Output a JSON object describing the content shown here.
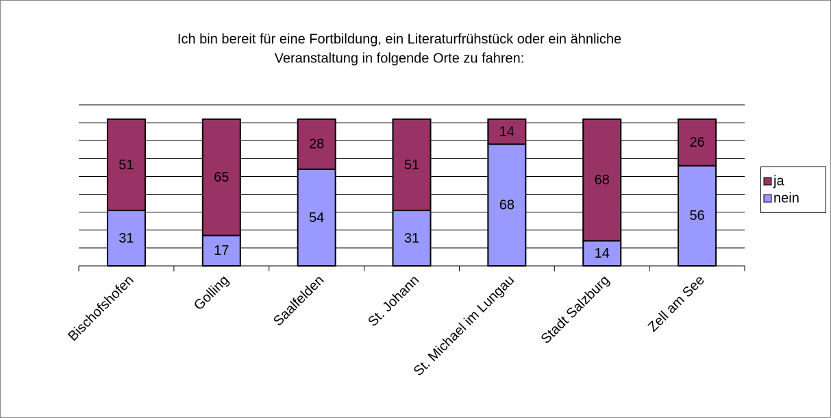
{
  "chart_data": {
    "type": "stacked_bar",
    "title": [
      "Ich bin bereit für eine Fortbildung, ein Literaturfrühstück oder ein ähnliche",
      "Veranstaltung in folgende Orte zu fahren:"
    ],
    "categories": [
      "Bischofshofen",
      "Golling",
      "Saalfelden",
      "St. Johann",
      "St. Michael im Lungau",
      "Stadt Salzburg",
      "Zell am See"
    ],
    "series": [
      {
        "name": "ja",
        "color": "#993366",
        "values": [
          51,
          65,
          28,
          51,
          14,
          68,
          26
        ]
      },
      {
        "name": "nein",
        "color": "#9999ff",
        "values": [
          31,
          17,
          54,
          31,
          68,
          14,
          56
        ]
      }
    ],
    "ylim": [
      0,
      90
    ],
    "yticks": [
      0,
      10,
      20,
      30,
      40,
      50,
      60,
      70,
      80,
      90
    ],
    "ytick_labels": false,
    "grid": true,
    "legend": "right"
  }
}
